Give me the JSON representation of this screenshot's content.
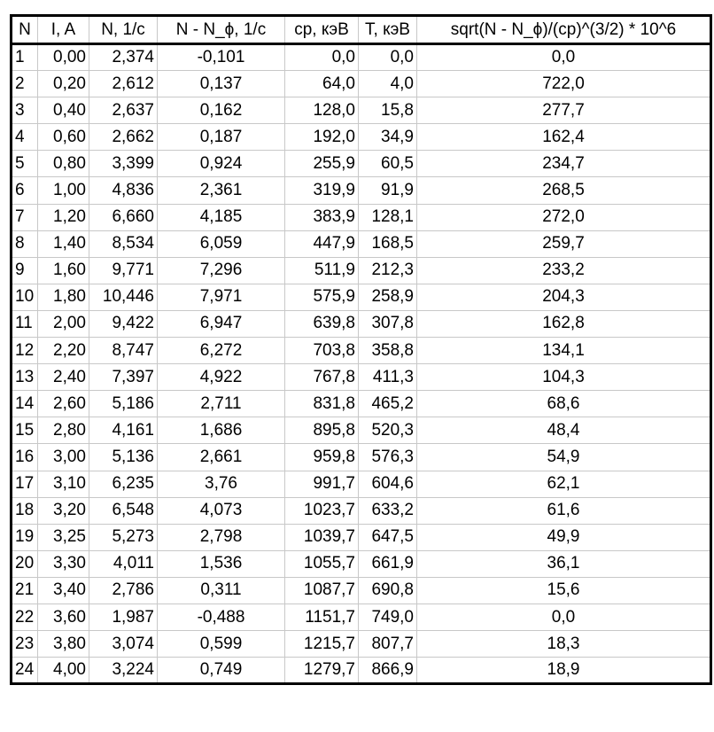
{
  "table": {
    "headers": [
      "N",
      "I, A",
      "N, 1/c",
      "N - N_ϕ, 1/c",
      "cp, кэВ",
      "T, кэВ",
      "sqrt(N - N_ϕ)/(cp)^(3/2) * 10^6"
    ],
    "rows": [
      [
        "1",
        "0,00",
        "2,374",
        "-0,101",
        "0,0",
        "0,0",
        "0,0"
      ],
      [
        "2",
        "0,20",
        "2,612",
        "0,137",
        "64,0",
        "4,0",
        "722,0"
      ],
      [
        "3",
        "0,40",
        "2,637",
        "0,162",
        "128,0",
        "15,8",
        "277,7"
      ],
      [
        "4",
        "0,60",
        "2,662",
        "0,187",
        "192,0",
        "34,9",
        "162,4"
      ],
      [
        "5",
        "0,80",
        "3,399",
        "0,924",
        "255,9",
        "60,5",
        "234,7"
      ],
      [
        "6",
        "1,00",
        "4,836",
        "2,361",
        "319,9",
        "91,9",
        "268,5"
      ],
      [
        "7",
        "1,20",
        "6,660",
        "4,185",
        "383,9",
        "128,1",
        "272,0"
      ],
      [
        "8",
        "1,40",
        "8,534",
        "6,059",
        "447,9",
        "168,5",
        "259,7"
      ],
      [
        "9",
        "1,60",
        "9,771",
        "7,296",
        "511,9",
        "212,3",
        "233,2"
      ],
      [
        "10",
        "1,80",
        "10,446",
        "7,971",
        "575,9",
        "258,9",
        "204,3"
      ],
      [
        "11",
        "2,00",
        "9,422",
        "6,947",
        "639,8",
        "307,8",
        "162,8"
      ],
      [
        "12",
        "2,20",
        "8,747",
        "6,272",
        "703,8",
        "358,8",
        "134,1"
      ],
      [
        "13",
        "2,40",
        "7,397",
        "4,922",
        "767,8",
        "411,3",
        "104,3"
      ],
      [
        "14",
        "2,60",
        "5,186",
        "2,711",
        "831,8",
        "465,2",
        "68,6"
      ],
      [
        "15",
        "2,80",
        "4,161",
        "1,686",
        "895,8",
        "520,3",
        "48,4"
      ],
      [
        "16",
        "3,00",
        "5,136",
        "2,661",
        "959,8",
        "576,3",
        "54,9"
      ],
      [
        "17",
        "3,10",
        "6,235",
        "3,76",
        "991,7",
        "604,6",
        "62,1"
      ],
      [
        "18",
        "3,20",
        "6,548",
        "4,073",
        "1023,7",
        "633,2",
        "61,6"
      ],
      [
        "19",
        "3,25",
        "5,273",
        "2,798",
        "1039,7",
        "647,5",
        "49,9"
      ],
      [
        "20",
        "3,30",
        "4,011",
        "1,536",
        "1055,7",
        "661,9",
        "36,1"
      ],
      [
        "21",
        "3,40",
        "2,786",
        "0,311",
        "1087,7",
        "690,8",
        "15,6"
      ],
      [
        "22",
        "3,60",
        "1,987",
        "-0,488",
        "1151,7",
        "749,0",
        "0,0"
      ],
      [
        "23",
        "3,80",
        "3,074",
        "0,599",
        "1215,7",
        "807,7",
        "18,3"
      ],
      [
        "24",
        "4,00",
        "3,224",
        "0,749",
        "1279,7",
        "866,9",
        "18,9"
      ]
    ]
  }
}
